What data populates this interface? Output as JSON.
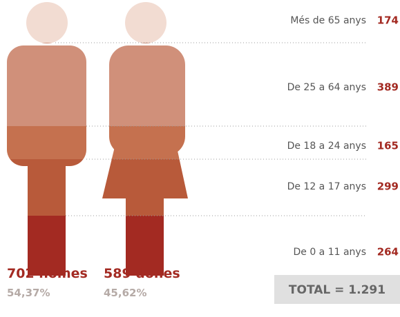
{
  "groups": [
    {
      "label": "Més de 65 anys",
      "value": "174"
    },
    {
      "label": "De 25 a 64 anys",
      "value": "389"
    },
    {
      "label": "De 18 a 24 anys",
      "value": "165"
    },
    {
      "label": "De 12 a 17 anys",
      "value": "299"
    },
    {
      "label": "De 0 a 11 anys",
      "value": "264"
    }
  ],
  "men": {
    "count": "702 homes",
    "percent": "54,37%"
  },
  "women": {
    "count": "589 dones",
    "percent": "45,62%"
  },
  "total": "TOTAL = 1.291"
}
